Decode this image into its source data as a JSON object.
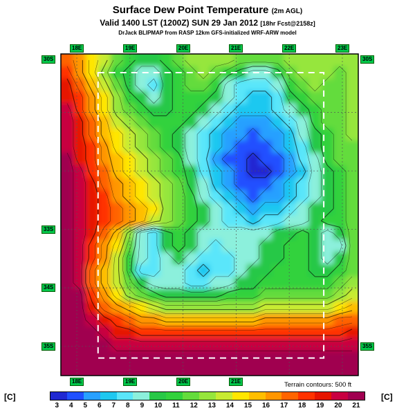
{
  "header": {
    "title": "Surface Dew Point Temperature",
    "title_suffix": "(2m AGL)",
    "valid_line": "Valid 1400 LST (1200Z) SUN 29 Jan 2012",
    "fcst_suffix": "[18hr Fcst@2158z]",
    "credit": "DrJack BLIPMAP from RASP 12km GFS-initialized WRF-ARW model"
  },
  "map": {
    "top_labels": [
      "18E",
      "19E",
      "20E",
      "21E",
      "22E",
      "23E"
    ],
    "bottom_labels": [
      "18E",
      "19E",
      "20E",
      "21E"
    ],
    "left_labels": [
      "30S",
      "33S",
      "34S",
      "35S"
    ],
    "right_labels": [
      "30S",
      "35S"
    ],
    "terrain_note": "Terrain contours: 500 ft"
  },
  "colorbar": {
    "unit": "[C]",
    "values": [
      3,
      4,
      5,
      6,
      7,
      8,
      9,
      10,
      11,
      12,
      13,
      14,
      15,
      16,
      17,
      18,
      19,
      20,
      21
    ],
    "colors": [
      "#2028d2",
      "#2050ff",
      "#28a0ff",
      "#1ec8f0",
      "#5ae6fa",
      "#8cf0dc",
      "#28c846",
      "#32d23c",
      "#64dc3c",
      "#96e63c",
      "#c8eb32",
      "#ffe600",
      "#ffbe00",
      "#ff9600",
      "#ff6400",
      "#ff3200",
      "#e61400",
      "#c80041",
      "#a00050"
    ]
  },
  "chart_data": {
    "type": "heatmap",
    "title": "Surface Dew Point Temperature (2m AGL)",
    "units": "C",
    "value_range": [
      3,
      21
    ],
    "lon_range": [
      17.7,
      23.3
    ],
    "lat_range": [
      -35.5,
      -30.0
    ],
    "domain_box": {
      "lon": [
        18.4,
        22.65
      ],
      "lat": [
        -35.2,
        -30.32
      ]
    },
    "grid": [
      [
        17,
        16,
        14,
        13,
        11,
        10,
        9,
        9,
        10,
        11,
        12,
        12,
        12,
        12,
        11,
        11,
        11,
        11,
        12,
        12,
        12,
        12,
        12,
        12
      ],
      [
        18,
        16,
        14,
        12,
        10,
        9,
        8,
        8,
        9,
        10,
        11,
        12,
        11,
        10,
        9,
        8,
        8,
        9,
        11,
        12,
        12,
        12,
        11,
        12
      ],
      [
        19,
        17,
        15,
        13,
        11,
        9,
        8,
        7,
        9,
        10,
        11,
        11,
        10,
        8,
        7,
        7,
        7,
        8,
        10,
        11,
        12,
        11,
        11,
        12
      ],
      [
        19,
        18,
        16,
        14,
        12,
        10,
        9,
        8,
        9,
        10,
        10,
        10,
        9,
        8,
        7,
        6,
        6,
        7,
        9,
        10,
        11,
        11,
        11,
        12
      ],
      [
        20,
        18,
        16,
        14,
        12,
        11,
        10,
        9,
        9,
        10,
        10,
        9,
        8,
        7,
        6,
        6,
        6,
        7,
        8,
        9,
        10,
        11,
        11,
        12
      ],
      [
        20,
        19,
        17,
        15,
        13,
        12,
        11,
        10,
        10,
        10,
        9,
        8,
        7,
        6,
        5,
        5,
        5,
        6,
        7,
        8,
        10,
        11,
        11,
        12
      ],
      [
        20,
        19,
        17,
        15,
        14,
        13,
        12,
        11,
        10,
        9,
        8,
        7,
        6,
        5,
        5,
        4,
        5,
        5,
        6,
        8,
        9,
        10,
        11,
        12
      ],
      [
        20,
        19,
        18,
        16,
        14,
        13,
        12,
        11,
        10,
        9,
        8,
        7,
        6,
        5,
        4,
        4,
        4,
        5,
        6,
        7,
        9,
        10,
        11,
        11
      ],
      [
        21,
        19,
        18,
        16,
        15,
        14,
        13,
        12,
        11,
        10,
        8,
        7,
        5,
        4,
        4,
        3,
        4,
        4,
        5,
        7,
        8,
        10,
        11,
        11
      ],
      [
        21,
        20,
        18,
        17,
        15,
        14,
        13,
        12,
        11,
        10,
        9,
        7,
        6,
        5,
        4,
        3,
        3,
        4,
        5,
        6,
        8,
        9,
        10,
        11
      ],
      [
        21,
        20,
        19,
        17,
        16,
        15,
        14,
        13,
        12,
        11,
        9,
        8,
        6,
        5,
        4,
        4,
        4,
        5,
        6,
        7,
        8,
        9,
        10,
        11
      ],
      [
        21,
        20,
        19,
        18,
        16,
        15,
        14,
        13,
        12,
        11,
        10,
        8,
        7,
        6,
        5,
        4,
        5,
        5,
        6,
        7,
        8,
        9,
        10,
        11
      ],
      [
        21,
        20,
        19,
        18,
        17,
        16,
        15,
        14,
        12,
        11,
        10,
        9,
        8,
        7,
        6,
        5,
        6,
        6,
        7,
        8,
        9,
        9,
        10,
        11
      ],
      [
        21,
        20,
        19,
        18,
        17,
        16,
        15,
        13,
        12,
        11,
        10,
        9,
        8,
        7,
        7,
        6,
        7,
        7,
        8,
        8,
        9,
        10,
        10,
        11
      ],
      [
        21,
        20,
        19,
        17,
        15,
        12,
        8,
        7,
        9,
        10,
        9,
        8,
        8,
        8,
        8,
        8,
        8,
        9,
        9,
        10,
        9,
        8,
        9,
        11
      ],
      [
        21,
        20,
        18,
        16,
        14,
        11,
        8,
        7,
        9,
        10,
        9,
        8,
        7,
        8,
        8,
        8,
        9,
        9,
        10,
        10,
        9,
        8,
        8,
        11
      ],
      [
        21,
        20,
        18,
        16,
        13,
        10,
        8,
        7,
        8,
        9,
        8,
        7,
        7,
        7,
        8,
        8,
        9,
        9,
        10,
        10,
        9,
        8,
        9,
        11
      ],
      [
        21,
        20,
        17,
        15,
        13,
        10,
        7,
        7,
        8,
        8,
        7,
        6,
        7,
        7,
        8,
        9,
        9,
        10,
        10,
        10,
        9,
        9,
        10,
        11
      ],
      [
        21,
        20,
        17,
        15,
        13,
        11,
        9,
        8,
        8,
        8,
        7,
        7,
        8,
        8,
        9,
        9,
        10,
        10,
        10,
        10,
        10,
        10,
        11,
        12
      ],
      [
        21,
        21,
        18,
        16,
        14,
        12,
        11,
        10,
        9,
        9,
        9,
        9,
        9,
        10,
        10,
        10,
        11,
        11,
        11,
        11,
        11,
        11,
        12,
        13
      ],
      [
        21,
        21,
        19,
        17,
        16,
        15,
        14,
        13,
        12,
        12,
        12,
        12,
        12,
        12,
        12,
        12,
        13,
        13,
        13,
        13,
        13,
        13,
        14,
        15
      ],
      [
        21,
        21,
        20,
        19,
        18,
        17,
        16,
        16,
        15,
        15,
        15,
        15,
        15,
        15,
        15,
        15,
        16,
        16,
        16,
        16,
        16,
        16,
        17,
        17
      ],
      [
        21,
        21,
        21,
        20,
        19,
        19,
        18,
        18,
        18,
        18,
        18,
        18,
        18,
        18,
        18,
        18,
        18,
        18,
        18,
        18,
        18,
        18,
        18,
        19
      ],
      [
        21,
        21,
        21,
        21,
        20,
        20,
        20,
        20,
        20,
        20,
        20,
        20,
        20,
        20,
        20,
        20,
        20,
        20,
        20,
        20,
        20,
        20,
        20,
        20
      ],
      [
        21,
        21,
        21,
        21,
        21,
        21,
        21,
        21,
        21,
        21,
        21,
        21,
        21,
        21,
        21,
        21,
        21,
        21,
        21,
        21,
        21,
        21,
        21,
        21
      ],
      [
        21,
        21,
        21,
        21,
        21,
        21,
        21,
        21,
        21,
        21,
        21,
        21,
        21,
        21,
        21,
        21,
        21,
        21,
        21,
        21,
        21,
        21,
        21,
        21
      ]
    ]
  }
}
